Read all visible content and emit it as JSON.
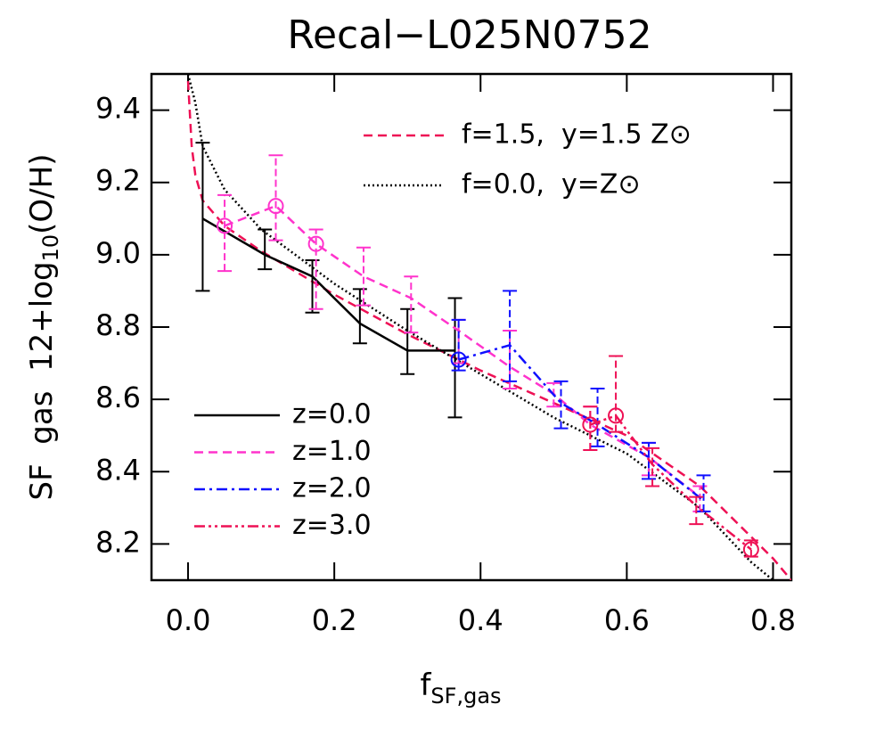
{
  "chart_data": {
    "type": "line",
    "title": "Recal−L025N0752",
    "xlabel": {
      "main": "f",
      "sub": "SF,gas"
    },
    "ylabel": {
      "main": "SF  gas  12+log",
      "sub": "10",
      "tail": "(O/H)"
    },
    "xlim": [
      -0.05,
      0.825
    ],
    "ylim": [
      8.1,
      9.5
    ],
    "xticks": [
      {
        "value": 0,
        "label": "0.0"
      },
      0.2,
      0.4,
      0.6,
      0.8
    ],
    "yticks": [
      8.2,
      8.4,
      8.6,
      8.8,
      {
        "value": 9,
        "label": "9.0"
      },
      9.2,
      9.4
    ],
    "series": [
      {
        "name": "z=0.0",
        "color": "#000000",
        "dash": "none",
        "x": [
          0.02,
          0.105,
          0.17,
          0.235,
          0.3,
          0.365
        ],
        "values": [
          9.1,
          9.0,
          8.94,
          8.81,
          8.735,
          8.735
        ],
        "lower": [
          8.9,
          8.96,
          8.84,
          8.755,
          8.67,
          8.55
        ],
        "upper": [
          9.31,
          9.07,
          8.985,
          8.905,
          8.85,
          8.88
        ],
        "circle": [
          false,
          false,
          false,
          false,
          false,
          false
        ]
      },
      {
        "name": "z=1.0",
        "color": "#ff33cc",
        "dash": "10,6",
        "x": [
          0.05,
          0.12,
          0.175,
          0.24,
          0.305,
          0.37,
          0.44,
          0.5,
          0.55,
          0.63,
          0.7
        ],
        "values": [
          9.08,
          9.135,
          9.03,
          8.94,
          8.88,
          8.79,
          8.69,
          8.615,
          8.53,
          8.44,
          8.33
        ],
        "lower": [
          8.955,
          9.04,
          8.85,
          8.86,
          8.785,
          8.7,
          8.63,
          8.58,
          8.46,
          8.39,
          8.29
        ],
        "upper": [
          9.165,
          9.275,
          9.07,
          9.02,
          8.94,
          8.82,
          8.79,
          8.645,
          8.58,
          8.48,
          8.36
        ],
        "circle": [
          true,
          true,
          true,
          false,
          false,
          false,
          false,
          false,
          false,
          false,
          false
        ]
      },
      {
        "name": "z=2.0",
        "color": "#1010ff",
        "dash": "12,5,3,5",
        "x": [
          0.37,
          0.44,
          0.51,
          0.56,
          0.63,
          0.705
        ],
        "values": [
          8.71,
          8.75,
          8.59,
          8.53,
          8.44,
          8.32
        ],
        "lower": [
          8.68,
          8.65,
          8.52,
          8.47,
          8.38,
          8.29
        ],
        "upper": [
          8.82,
          8.9,
          8.65,
          8.63,
          8.48,
          8.39
        ],
        "circle": [
          true,
          false,
          false,
          false,
          false,
          false
        ]
      },
      {
        "name": "z=3.0",
        "color": "#ee1155",
        "dash": "12,4,3,4,3,4",
        "x": [
          0.55,
          0.585,
          0.635,
          0.695,
          0.77
        ],
        "values": [
          8.53,
          8.555,
          8.42,
          8.305,
          8.185
        ],
        "lower": [
          8.46,
          8.51,
          8.36,
          8.255,
          8.165
        ],
        "upper": [
          8.58,
          8.72,
          8.465,
          8.33,
          8.21
        ],
        "circle": [
          true,
          true,
          false,
          false,
          true
        ]
      }
    ],
    "models": [
      {
        "name": "f=1.5,  y=1.5 Z⊙",
        "color": "#ee1155",
        "dash": "10,6",
        "x": [
          0.0,
          0.005,
          0.01,
          0.02,
          0.05,
          0.1,
          0.2,
          0.3,
          0.4,
          0.5,
          0.6,
          0.7,
          0.8,
          0.825
        ],
        "values": [
          9.48,
          9.3,
          9.22,
          9.15,
          9.08,
          9.01,
          8.89,
          8.78,
          8.68,
          8.59,
          8.5,
          8.36,
          8.16,
          8.1
        ]
      },
      {
        "name": "f=0.0,  y=Z⊙",
        "color": "#000000",
        "dash": "2,3",
        "x": [
          0.0,
          0.01,
          0.02,
          0.05,
          0.1,
          0.2,
          0.3,
          0.4,
          0.5,
          0.6,
          0.7,
          0.77,
          0.8
        ],
        "values": [
          9.5,
          9.42,
          9.3,
          9.18,
          9.07,
          8.92,
          8.79,
          8.67,
          8.55,
          8.45,
          8.3,
          8.15,
          8.1
        ]
      }
    ]
  }
}
